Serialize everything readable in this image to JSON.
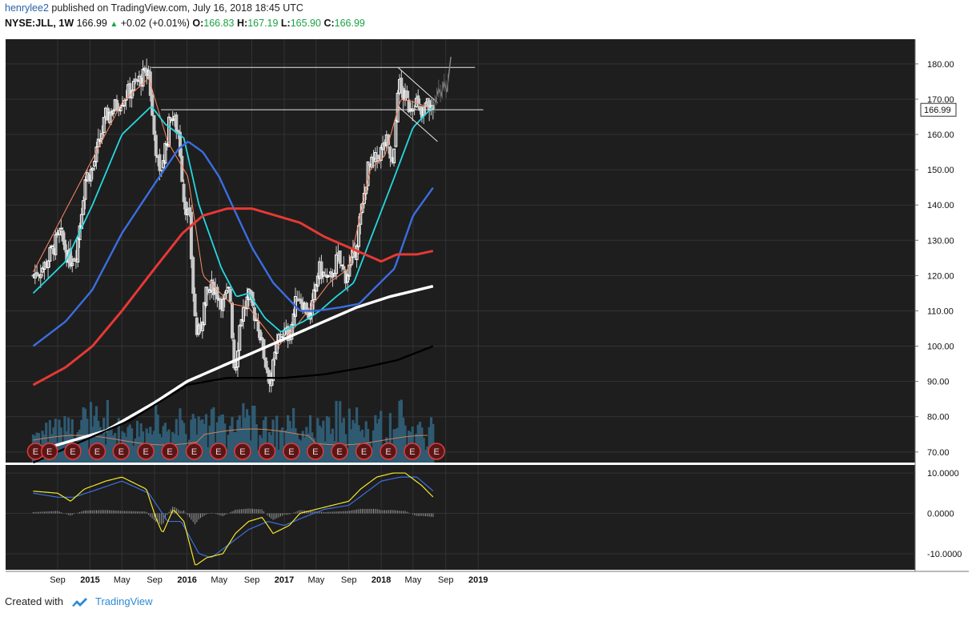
{
  "header": {
    "user": "henrylee2",
    "published_text": " published on TradingView.com, July 16, 2018 18:45 UTC",
    "symbol": "NYSE:JLL, 1W",
    "last": "166.99",
    "change": "+0.02 (+0.01%)",
    "open_label": "O:",
    "open": "166.83",
    "high_label": "H:",
    "high": "167.19",
    "low_label": "L:",
    "low": "165.90",
    "close_label": "C:",
    "close": "166.99"
  },
  "footer": {
    "created_with": "Created with",
    "brand": "TradingView"
  },
  "colors": {
    "panel_bg": "#1e1e1e",
    "up_candle": "#ffffff",
    "down_candle": "#c8c8c8",
    "ema_fast": "#ff8a65",
    "ema_cyan": "#26d7e0",
    "ma_blue": "#3a6ee0",
    "ma_red": "#e53935",
    "ma_white": "#ffffff",
    "ma_black": "#000000",
    "volume": "#2f5a72",
    "macd": "#f5e62b",
    "signal": "#3b6fe0",
    "earnings": "#e23b3b"
  },
  "chart_data": {
    "type": "candlestick",
    "symbol": "NYSE:JLL",
    "interval": "1W",
    "price_axis": {
      "ylim": [
        67,
        187
      ],
      "ticks": [
        "180.00",
        "170.00",
        "160.00",
        "150.00",
        "140.00",
        "130.00",
        "120.00",
        "110.00",
        "100.00",
        "90.00",
        "80.00",
        "70.00"
      ]
    },
    "macd_axis": {
      "ylim": [
        -14,
        12
      ],
      "ticks": [
        "10.0000",
        "0.0000",
        "-10.0000"
      ]
    },
    "time_axis": {
      "start_week": "2014-06-01",
      "ticks": [
        {
          "label": "Sep",
          "date": "2014-09-01",
          "bold": false
        },
        {
          "label": "2015",
          "date": "2015-01-01",
          "bold": true
        },
        {
          "label": "May",
          "date": "2015-05-01",
          "bold": false
        },
        {
          "label": "Sep",
          "date": "2015-09-01",
          "bold": false
        },
        {
          "label": "2016",
          "date": "2016-01-01",
          "bold": true
        },
        {
          "label": "May",
          "date": "2016-05-01",
          "bold": false
        },
        {
          "label": "Sep",
          "date": "2016-09-01",
          "bold": false
        },
        {
          "label": "2017",
          "date": "2017-01-01",
          "bold": true
        },
        {
          "label": "May",
          "date": "2017-05-01",
          "bold": false
        },
        {
          "label": "Sep",
          "date": "2017-09-01",
          "bold": false
        },
        {
          "label": "2018",
          "date": "2018-01-01",
          "bold": true
        },
        {
          "label": "May",
          "date": "2018-05-01",
          "bold": false
        },
        {
          "label": "Sep",
          "date": "2018-09-01",
          "bold": false
        },
        {
          "label": "2019",
          "date": "2019-01-01",
          "bold": true
        }
      ]
    },
    "last_price_label": "166.99",
    "close_keypoints": [
      {
        "date": "2014-06-01",
        "close": 120
      },
      {
        "date": "2014-07-15",
        "close": 123
      },
      {
        "date": "2014-09-10",
        "close": 132
      },
      {
        "date": "2014-10-15",
        "close": 124
      },
      {
        "date": "2014-11-10",
        "close": 127
      },
      {
        "date": "2014-12-15",
        "close": 148
      },
      {
        "date": "2015-01-10",
        "close": 150
      },
      {
        "date": "2015-03-01",
        "close": 165
      },
      {
        "date": "2015-05-01",
        "close": 170
      },
      {
        "date": "2015-07-01",
        "close": 175
      },
      {
        "date": "2015-08-10",
        "close": 178
      },
      {
        "date": "2015-08-25",
        "close": 163
      },
      {
        "date": "2015-09-20",
        "close": 148
      },
      {
        "date": "2015-10-15",
        "close": 158
      },
      {
        "date": "2015-11-01",
        "close": 166
      },
      {
        "date": "2015-12-01",
        "close": 160
      },
      {
        "date": "2015-12-20",
        "close": 142
      },
      {
        "date": "2016-01-10",
        "close": 135
      },
      {
        "date": "2016-01-28",
        "close": 110
      },
      {
        "date": "2016-02-10",
        "close": 102
      },
      {
        "date": "2016-03-15",
        "close": 115
      },
      {
        "date": "2016-04-10",
        "close": 117
      },
      {
        "date": "2016-05-15",
        "close": 112
      },
      {
        "date": "2016-06-10",
        "close": 116
      },
      {
        "date": "2016-06-28",
        "close": 92
      },
      {
        "date": "2016-07-20",
        "close": 108
      },
      {
        "date": "2016-08-20",
        "close": 114
      },
      {
        "date": "2016-09-25",
        "close": 106
      },
      {
        "date": "2016-10-20",
        "close": 96
      },
      {
        "date": "2016-11-10",
        "close": 90
      },
      {
        "date": "2016-12-15",
        "close": 104
      },
      {
        "date": "2017-01-20",
        "close": 103
      },
      {
        "date": "2017-02-20",
        "close": 115
      },
      {
        "date": "2017-04-10",
        "close": 108
      },
      {
        "date": "2017-05-10",
        "close": 122
      },
      {
        "date": "2017-06-20",
        "close": 118
      },
      {
        "date": "2017-07-20",
        "close": 125
      },
      {
        "date": "2017-08-20",
        "close": 120
      },
      {
        "date": "2017-09-15",
        "close": 124
      },
      {
        "date": "2017-10-20",
        "close": 138
      },
      {
        "date": "2017-11-10",
        "close": 150
      },
      {
        "date": "2017-12-15",
        "close": 153
      },
      {
        "date": "2018-01-20",
        "close": 158
      },
      {
        "date": "2018-02-15",
        "close": 150
      },
      {
        "date": "2018-03-05",
        "close": 175
      },
      {
        "date": "2018-03-20",
        "close": 172
      },
      {
        "date": "2018-04-15",
        "close": 168
      },
      {
        "date": "2018-05-10",
        "close": 170
      },
      {
        "date": "2018-06-01",
        "close": 164
      },
      {
        "date": "2018-06-20",
        "close": 169
      },
      {
        "date": "2018-07-16",
        "close": 166.99
      }
    ],
    "moving_averages": [
      {
        "style": "thin salmon",
        "points": [
          [
            "2014-06-01",
            121
          ],
          [
            "2015-05-01",
            169
          ],
          [
            "2015-08-10",
            176
          ],
          [
            "2015-10-20",
            158
          ],
          [
            "2016-01-05",
            148
          ],
          [
            "2016-03-01",
            120
          ],
          [
            "2016-06-15",
            112
          ],
          [
            "2016-08-20",
            111
          ],
          [
            "2016-12-10",
            100
          ],
          [
            "2017-03-01",
            107
          ],
          [
            "2017-06-20",
            118
          ],
          [
            "2017-09-01",
            122
          ],
          [
            "2017-11-20",
            150
          ],
          [
            "2018-01-15",
            154
          ],
          [
            "2018-03-15",
            170
          ],
          [
            "2018-05-15",
            169
          ],
          [
            "2018-07-16",
            167
          ]
        ]
      },
      {
        "style": "cyan",
        "points": [
          [
            "2014-06-01",
            115
          ],
          [
            "2014-10-01",
            124
          ],
          [
            "2015-01-10",
            140
          ],
          [
            "2015-05-01",
            160
          ],
          [
            "2015-08-20",
            168
          ],
          [
            "2015-10-10",
            163
          ],
          [
            "2015-12-20",
            159
          ],
          [
            "2016-02-15",
            140
          ],
          [
            "2016-05-10",
            122
          ],
          [
            "2016-07-05",
            114
          ],
          [
            "2016-08-20",
            115
          ],
          [
            "2016-10-20",
            108
          ],
          [
            "2016-12-20",
            104
          ],
          [
            "2017-03-15",
            107
          ],
          [
            "2017-05-15",
            110
          ],
          [
            "2017-07-15",
            114
          ],
          [
            "2017-09-20",
            118
          ],
          [
            "2017-11-20",
            130
          ],
          [
            "2018-02-20",
            148
          ],
          [
            "2018-05-01",
            162
          ],
          [
            "2018-07-16",
            168
          ]
        ]
      },
      {
        "style": "blue",
        "points": [
          [
            "2014-06-01",
            100
          ],
          [
            "2014-10-01",
            107
          ],
          [
            "2015-01-10",
            116
          ],
          [
            "2015-05-01",
            132
          ],
          [
            "2015-09-01",
            146
          ],
          [
            "2015-12-01",
            156
          ],
          [
            "2016-01-05",
            158
          ],
          [
            "2016-03-01",
            155
          ],
          [
            "2016-05-01",
            148
          ],
          [
            "2016-07-01",
            138
          ],
          [
            "2016-09-01",
            128
          ],
          [
            "2016-11-20",
            118
          ],
          [
            "2017-03-01",
            110
          ],
          [
            "2017-05-01",
            110
          ],
          [
            "2017-08-01",
            111
          ],
          [
            "2017-10-10",
            112
          ],
          [
            "2017-12-15",
            117
          ],
          [
            "2018-02-20",
            122
          ],
          [
            "2018-05-01",
            137
          ],
          [
            "2018-07-16",
            145
          ]
        ]
      },
      {
        "style": "red",
        "points": [
          [
            "2014-06-01",
            89
          ],
          [
            "2014-10-01",
            94
          ],
          [
            "2015-01-10",
            100
          ],
          [
            "2015-05-01",
            110
          ],
          [
            "2015-09-01",
            122
          ],
          [
            "2015-12-15",
            132
          ],
          [
            "2016-03-01",
            137
          ],
          [
            "2016-06-01",
            139
          ],
          [
            "2016-09-01",
            139
          ],
          [
            "2016-12-01",
            137
          ],
          [
            "2017-03-01",
            135
          ],
          [
            "2017-06-01",
            131
          ],
          [
            "2017-09-01",
            128
          ],
          [
            "2017-11-01",
            126
          ],
          [
            "2018-01-01",
            124
          ],
          [
            "2018-03-01",
            126
          ],
          [
            "2018-05-15",
            126
          ],
          [
            "2018-07-16",
            127
          ]
        ]
      },
      {
        "style": "white",
        "points": [
          [
            "2014-06-01",
            70
          ],
          [
            "2015-03-01",
            76
          ],
          [
            "2015-09-01",
            84
          ],
          [
            "2016-01-01",
            90
          ],
          [
            "2016-06-01",
            95
          ],
          [
            "2016-12-01",
            101
          ],
          [
            "2017-05-01",
            106
          ],
          [
            "2017-10-01",
            111
          ],
          [
            "2018-02-01",
            114
          ],
          [
            "2018-07-16",
            117
          ]
        ]
      },
      {
        "style": "black",
        "points": [
          [
            "2014-06-01",
            67
          ],
          [
            "2015-06-01",
            79
          ],
          [
            "2016-01-01",
            89
          ],
          [
            "2016-06-01",
            91
          ],
          [
            "2017-01-01",
            91
          ],
          [
            "2017-06-01",
            92
          ],
          [
            "2017-11-01",
            94
          ],
          [
            "2018-03-01",
            96
          ],
          [
            "2018-07-16",
            100
          ]
        ]
      }
    ],
    "annotations": {
      "resistance_line": {
        "from": [
          "2015-08-20",
          179
        ],
        "to": [
          "2018-12-20",
          179
        ]
      },
      "horizontal_line": {
        "from": [
          "2015-09-25",
          167
        ],
        "to": [
          "2019-01-20",
          167
        ]
      },
      "channel_upper": {
        "from": [
          "2018-03-05",
          179
        ],
        "to": [
          "2018-08-01",
          169
        ]
      },
      "channel_lower": {
        "from": [
          "2018-03-05",
          168
        ],
        "to": [
          "2018-08-01",
          158
        ]
      },
      "projection": [
        [
          "2018-07-20",
          168
        ],
        [
          "2018-08-05",
          173
        ],
        [
          "2018-08-15",
          171
        ],
        [
          "2018-08-25",
          175
        ],
        [
          "2018-09-05",
          172
        ],
        [
          "2018-09-20",
          182
        ]
      ]
    },
    "earnings_marker_label": "E",
    "earnings_dates": [
      "2014-06-10",
      "2014-08-01",
      "2014-10-28",
      "2015-01-28",
      "2015-04-28",
      "2015-07-30",
      "2015-10-28",
      "2016-01-28",
      "2016-04-28",
      "2016-07-28",
      "2016-10-28",
      "2017-01-28",
      "2017-04-28",
      "2017-07-28",
      "2017-10-28",
      "2018-01-28",
      "2018-04-28",
      "2018-07-28"
    ],
    "macd_keypoints": {
      "macd": [
        [
          "2014-06-01",
          5.5
        ],
        [
          "2014-09-01",
          5
        ],
        [
          "2014-10-20",
          3
        ],
        [
          "2014-12-10",
          6
        ],
        [
          "2015-03-01",
          8
        ],
        [
          "2015-05-01",
          9
        ],
        [
          "2015-08-01",
          6
        ],
        [
          "2015-09-05",
          -1
        ],
        [
          "2015-10-01",
          -5
        ],
        [
          "2015-11-10",
          1
        ],
        [
          "2015-12-20",
          -2
        ],
        [
          "2016-02-01",
          -13
        ],
        [
          "2016-03-15",
          -11
        ],
        [
          "2016-05-15",
          -10
        ],
        [
          "2016-07-01",
          -5
        ],
        [
          "2016-08-20",
          -2
        ],
        [
          "2016-10-10",
          -1
        ],
        [
          "2016-11-20",
          -5
        ],
        [
          "2017-01-20",
          -3
        ],
        [
          "2017-03-01",
          0
        ],
        [
          "2017-05-01",
          1
        ],
        [
          "2017-07-01",
          2
        ],
        [
          "2017-09-01",
          3
        ],
        [
          "2017-10-15",
          6
        ],
        [
          "2017-12-15",
          9
        ],
        [
          "2018-02-15",
          10
        ],
        [
          "2018-04-01",
          10
        ],
        [
          "2018-06-01",
          7
        ],
        [
          "2018-07-16",
          4
        ]
      ],
      "signal": [
        [
          "2014-06-01",
          5
        ],
        [
          "2014-09-01",
          4
        ],
        [
          "2014-11-01",
          4
        ],
        [
          "2015-02-01",
          6
        ],
        [
          "2015-05-01",
          8
        ],
        [
          "2015-08-10",
          5
        ],
        [
          "2015-09-20",
          1
        ],
        [
          "2015-10-20",
          -2
        ],
        [
          "2015-12-10",
          -2
        ],
        [
          "2016-02-15",
          -10
        ],
        [
          "2016-04-01",
          -11
        ],
        [
          "2016-06-01",
          -8
        ],
        [
          "2016-08-20",
          -4
        ],
        [
          "2016-11-01",
          -2
        ],
        [
          "2017-01-01",
          -3
        ],
        [
          "2017-03-15",
          -1
        ],
        [
          "2017-06-01",
          1
        ],
        [
          "2017-09-01",
          2
        ],
        [
          "2017-11-01",
          5
        ],
        [
          "2018-01-01",
          8
        ],
        [
          "2018-03-15",
          9
        ],
        [
          "2018-05-15",
          9
        ],
        [
          "2018-07-16",
          5.5
        ]
      ]
    }
  }
}
